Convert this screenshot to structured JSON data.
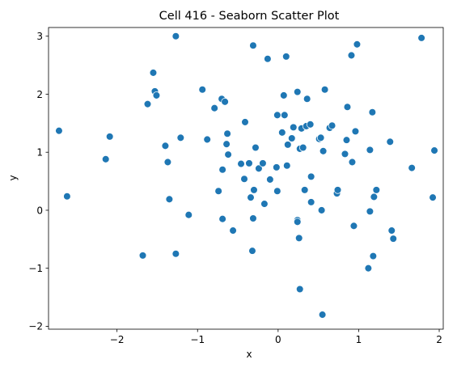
{
  "chart_data": {
    "type": "scatter",
    "title": "Cell 416 - Seaborn Scatter Plot",
    "xlabel": "x",
    "ylabel": "y",
    "xlim": [
      -2.85,
      2.05
    ],
    "ylim": [
      -2.05,
      3.15
    ],
    "xticks": [
      -2,
      -1,
      0,
      1,
      2
    ],
    "yticks": [
      -2,
      -1,
      0,
      1,
      2,
      3
    ],
    "grid": false,
    "legend": "none",
    "marker_color": "#1f77b4",
    "points": [
      [
        -2.72,
        1.37
      ],
      [
        -2.62,
        0.24
      ],
      [
        -2.09,
        1.27
      ],
      [
        -2.14,
        0.88
      ],
      [
        -1.68,
        -0.78
      ],
      [
        -1.62,
        1.83
      ],
      [
        -1.55,
        2.37
      ],
      [
        -1.53,
        2.05
      ],
      [
        -1.51,
        1.98
      ],
      [
        -1.4,
        1.11
      ],
      [
        -1.37,
        0.83
      ],
      [
        -1.35,
        0.19
      ],
      [
        -1.27,
        3.0
      ],
      [
        -1.27,
        -0.75
      ],
      [
        -1.21,
        1.25
      ],
      [
        -1.11,
        -0.08
      ],
      [
        -0.94,
        2.08
      ],
      [
        -0.88,
        1.22
      ],
      [
        -0.79,
        1.76
      ],
      [
        -0.74,
        0.33
      ],
      [
        -0.7,
        1.92
      ],
      [
        -0.69,
        0.7
      ],
      [
        -0.69,
        -0.15
      ],
      [
        -0.66,
        1.87
      ],
      [
        -0.64,
        1.14
      ],
      [
        -0.63,
        1.32
      ],
      [
        -0.62,
        0.96
      ],
      [
        -0.56,
        -0.35
      ],
      [
        -0.46,
        0.8
      ],
      [
        -0.42,
        0.54
      ],
      [
        -0.41,
        1.52
      ],
      [
        -0.36,
        0.81
      ],
      [
        -0.34,
        0.22
      ],
      [
        -0.32,
        -0.7
      ],
      [
        -0.31,
        2.84
      ],
      [
        -0.31,
        -0.14
      ],
      [
        -0.3,
        0.35
      ],
      [
        -0.28,
        1.08
      ],
      [
        -0.24,
        0.72
      ],
      [
        -0.19,
        0.81
      ],
      [
        -0.17,
        0.11
      ],
      [
        -0.13,
        2.61
      ],
      [
        -0.1,
        0.53
      ],
      [
        -0.01,
        1.64
      ],
      [
        -0.02,
        0.74
      ],
      [
        -0.01,
        0.33
      ],
      [
        0.05,
        1.34
      ],
      [
        0.07,
        1.98
      ],
      [
        0.08,
        1.64
      ],
      [
        0.1,
        2.65
      ],
      [
        0.11,
        0.77
      ],
      [
        0.12,
        1.13
      ],
      [
        0.17,
        1.24
      ],
      [
        0.19,
        1.43
      ],
      [
        0.24,
        2.04
      ],
      [
        0.24,
        -0.17
      ],
      [
        0.24,
        -0.2
      ],
      [
        0.26,
        -0.48
      ],
      [
        0.27,
        -1.36
      ],
      [
        0.27,
        1.06
      ],
      [
        0.29,
        1.41
      ],
      [
        0.31,
        1.08
      ],
      [
        0.33,
        0.35
      ],
      [
        0.35,
        1.45
      ],
      [
        0.36,
        1.92
      ],
      [
        0.4,
        1.48
      ],
      [
        0.41,
        0.58
      ],
      [
        0.41,
        0.14
      ],
      [
        0.51,
        1.23
      ],
      [
        0.53,
        1.25
      ],
      [
        0.54,
        0.0
      ],
      [
        0.55,
        -1.8
      ],
      [
        0.56,
        1.02
      ],
      [
        0.58,
        2.08
      ],
      [
        0.64,
        1.42
      ],
      [
        0.67,
        1.46
      ],
      [
        0.73,
        0.29
      ],
      [
        0.74,
        0.35
      ],
      [
        0.83,
        0.97
      ],
      [
        0.85,
        1.21
      ],
      [
        0.86,
        1.78
      ],
      [
        0.91,
        2.67
      ],
      [
        0.92,
        0.83
      ],
      [
        0.94,
        -0.27
      ],
      [
        0.96,
        1.36
      ],
      [
        0.98,
        2.86
      ],
      [
        1.12,
        -1.0
      ],
      [
        1.14,
        1.04
      ],
      [
        1.14,
        -0.02
      ],
      [
        1.17,
        1.69
      ],
      [
        1.18,
        -0.79
      ],
      [
        1.19,
        0.23
      ],
      [
        1.22,
        0.35
      ],
      [
        1.39,
        1.18
      ],
      [
        1.41,
        -0.35
      ],
      [
        1.43,
        -0.49
      ],
      [
        1.66,
        0.73
      ],
      [
        1.78,
        2.97
      ],
      [
        1.92,
        0.22
      ],
      [
        1.94,
        1.03
      ]
    ]
  }
}
